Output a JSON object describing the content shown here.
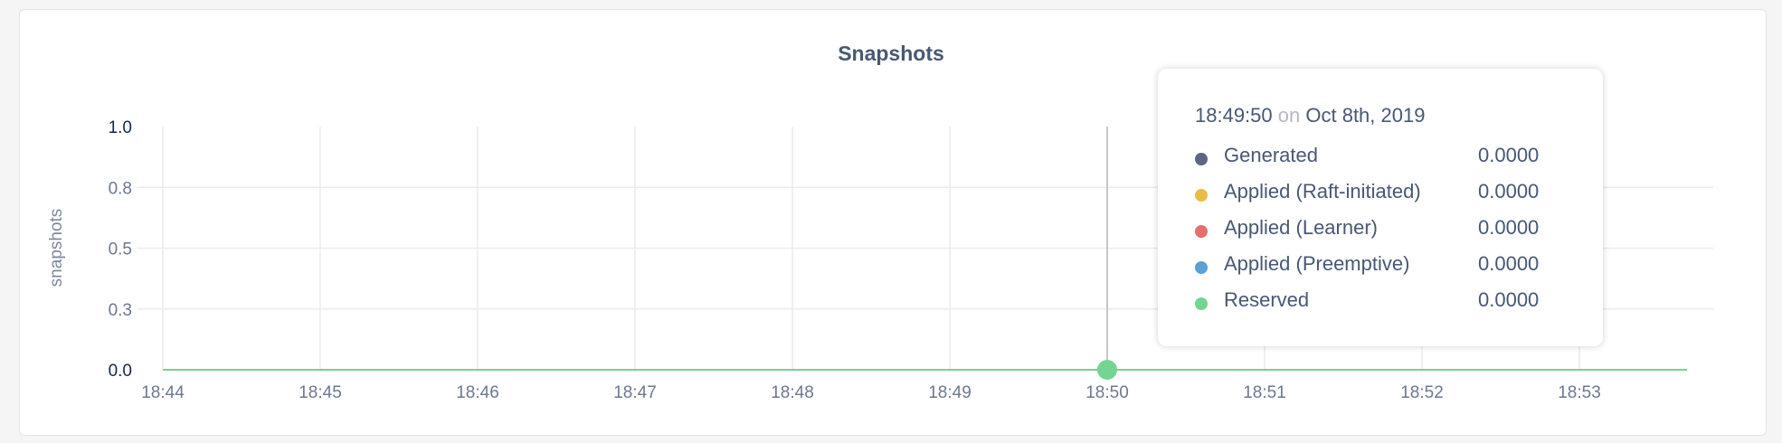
{
  "chart_data": {
    "type": "line",
    "title": "Snapshots",
    "ylabel": "snapshots",
    "xlabel": "",
    "ylim": [
      0,
      1
    ],
    "y_ticks": [
      "1.0",
      "0.8",
      "0.5",
      "0.3",
      "0.0"
    ],
    "x_ticks": [
      "18:44",
      "18:45",
      "18:46",
      "18:47",
      "18:48",
      "18:49",
      "18:50",
      "18:51",
      "18:52",
      "18:53"
    ],
    "x_range": [
      "18:44:00",
      "18:53:41"
    ],
    "grid": true,
    "series": [
      {
        "name": "Generated",
        "color": "#5a6784",
        "values": [
          0,
          0
        ]
      },
      {
        "name": "Applied (Raft-initiated)",
        "color": "#e9bd45",
        "values": [
          0,
          0
        ]
      },
      {
        "name": "Applied (Learner)",
        "color": "#e46f6b",
        "values": [
          0,
          0
        ]
      },
      {
        "name": "Applied (Preemptive)",
        "color": "#5ca0d3",
        "values": [
          0,
          0
        ]
      },
      {
        "name": "Reserved",
        "color": "#74d491",
        "values": [
          0,
          0
        ]
      }
    ],
    "tooltip": {
      "time": "18:49:50",
      "on": "on",
      "date": "Oct 8th, 2019",
      "rows": [
        {
          "label": "Generated",
          "value": "0.0000"
        },
        {
          "label": "Applied (Raft-initiated)",
          "value": "0.0000"
        },
        {
          "label": "Applied (Learner)",
          "value": "0.0000"
        },
        {
          "label": "Applied (Preemptive)",
          "value": "0.0000"
        },
        {
          "label": "Reserved",
          "value": "0.0000"
        }
      ]
    }
  }
}
